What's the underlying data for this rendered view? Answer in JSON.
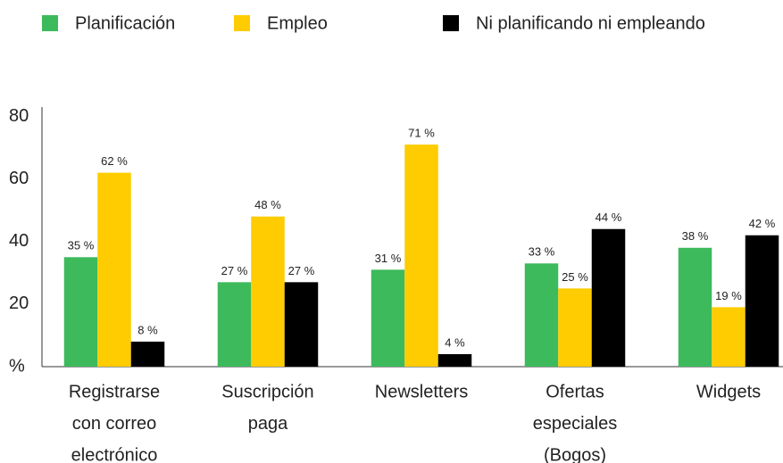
{
  "chart_data": {
    "type": "bar",
    "categories": [
      [
        "Registrarse",
        "con correo",
        "electrónico"
      ],
      [
        "Suscripción",
        "paga"
      ],
      [
        "Newsletters"
      ],
      [
        "Ofertas",
        "especiales",
        "(Bogos)"
      ],
      [
        "Widgets"
      ]
    ],
    "series": [
      {
        "name": "Planificación",
        "color": "#3dba5c",
        "values": [
          35,
          27,
          31,
          33,
          38
        ],
        "value_labels": [
          "35 %",
          "27 %",
          "31 %",
          "33 %",
          "38 %"
        ]
      },
      {
        "name": "Empleo",
        "color": "#fecc00",
        "values": [
          62,
          48,
          71,
          25,
          19
        ],
        "value_labels": [
          "62 %",
          "48 %",
          "71 %",
          "25 %",
          "19 %"
        ]
      },
      {
        "name": "Ni planificando ni empleando",
        "color": "#000000",
        "values": [
          8,
          27,
          4,
          44,
          42
        ],
        "value_labels": [
          "8 %",
          "27 %",
          "4 %",
          "44 %",
          "42 %"
        ]
      }
    ],
    "ylim": [
      0,
      83
    ],
    "yticks": [
      {
        "value": 0,
        "label": "%"
      },
      20,
      40,
      60,
      80
    ],
    "grid": false,
    "legend": "top"
  }
}
